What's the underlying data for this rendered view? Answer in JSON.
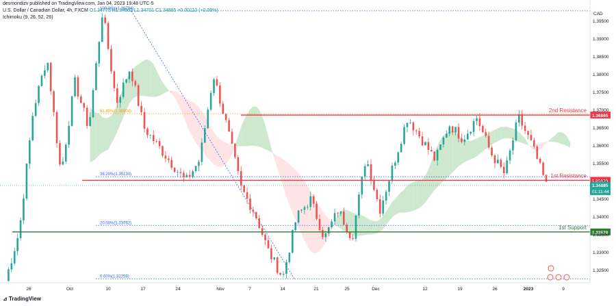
{
  "header": {
    "line1": "desmondizv published on TradingView.com, Jan 04, 2023 19:48 UTC-5",
    "line2_symbol": "U.S. Dollar / Canadian Dollar, 4h, FXCM",
    "line2_ohlc": "O1.34775 H1.34902 L1.34701 C1.34885 +0.00110 (+0.08%)",
    "line3": "Ichimoku (9, 26, 52, 26)"
  },
  "footer": {
    "brand": "TradingView"
  },
  "colors": {
    "up": "#26a69a",
    "down": "#ef5350",
    "resistance": "#f23645",
    "support": "#2e7d32",
    "fib": "#2962ff",
    "fib_orange": "#ff9800",
    "cloud_green": "#a5d6a7",
    "cloud_red": "#ffcdd2"
  },
  "chart_data": {
    "type": "candlestick",
    "currency": "CAD",
    "ylim": [
      1.3215,
      1.401
    ],
    "y_ticks": [
      1.325,
      1.33,
      1.335,
      1.34,
      1.345,
      1.35,
      1.355,
      1.36,
      1.365,
      1.37,
      1.375,
      1.38,
      1.385,
      1.39,
      1.395
    ],
    "x_ticks": [
      "26",
      "Oct",
      "10",
      "17",
      "24",
      "Nov",
      "7",
      "14",
      "21",
      "25",
      "Dec",
      "12",
      "19",
      "26",
      "2023",
      "9"
    ],
    "levels": [
      {
        "name": "2nd Resistance",
        "value": 1.36865,
        "label": "1.36865"
      },
      {
        "name": "1st Resistance",
        "value": 1.35029,
        "label": "1.35029"
      },
      {
        "name": "1st Support",
        "value": 1.33578,
        "label": "1.33578"
      }
    ],
    "fib_levels": [
      {
        "label": "100.00%(1.39794)",
        "value": 1.39794
      },
      {
        "label": "61.80%(1.36904)",
        "value": 1.36904
      },
      {
        "label": "38.20%(1.35130)",
        "value": 1.3513
      },
      {
        "label": "20.00%(1.33762)",
        "value": 1.33762
      },
      {
        "label": "0.00%(1.32259)",
        "value": 1.32259
      }
    ],
    "current_price": {
      "value": 1.34885,
      "label": "1.34885",
      "countdown": "01:11:44"
    },
    "swings": [
      1.322,
      1.336,
      1.37,
      1.385,
      1.352,
      1.378,
      1.365,
      1.398,
      1.372,
      1.382,
      1.365,
      1.36,
      1.355,
      1.35,
      1.356,
      1.38,
      1.365,
      1.348,
      1.341,
      1.33,
      1.323,
      1.34,
      1.345,
      1.334,
      1.342,
      1.334,
      1.357,
      1.342,
      1.355,
      1.368,
      1.362,
      1.356,
      1.366,
      1.362,
      1.368,
      1.358,
      1.352,
      1.368,
      1.36,
      1.349
    ]
  }
}
